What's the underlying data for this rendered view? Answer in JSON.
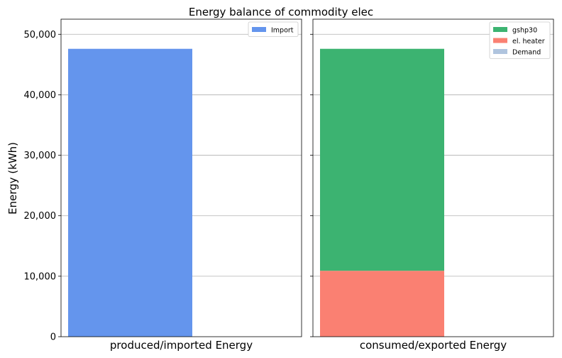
{
  "chart_data": {
    "type": "bar",
    "title": "Energy balance of commodity elec",
    "ylabel": "Energy (kWh)",
    "ylim": [
      0,
      52500
    ],
    "yticks": [
      0,
      10000,
      20000,
      30000,
      40000,
      50000
    ],
    "ytick_labels": [
      "0",
      "10,000",
      "20,000",
      "30,000",
      "40,000",
      "50,000"
    ],
    "grid": true,
    "panels": [
      {
        "xlabel": "produced/imported Energy",
        "legend_placement": "top-right",
        "stack": [
          {
            "name": "Import",
            "value": 47600,
            "color": "#6495ED"
          }
        ],
        "legend": [
          {
            "name": "Import",
            "color": "#6495ED"
          }
        ]
      },
      {
        "xlabel": "consumed/exported Energy",
        "legend_placement": "top-right",
        "stack": [
          {
            "name": "Demand",
            "value": 0,
            "color": "#B0C4DE"
          },
          {
            "name": "el. heater",
            "value": 10900,
            "color": "#FA8072"
          },
          {
            "name": "gshp30",
            "value": 36700,
            "color": "#3CB371"
          }
        ],
        "legend": [
          {
            "name": "gshp30",
            "color": "#3CB371"
          },
          {
            "name": "el. heater",
            "color": "#FA8072"
          },
          {
            "name": "Demand",
            "color": "#B0C4DE"
          }
        ]
      }
    ]
  }
}
